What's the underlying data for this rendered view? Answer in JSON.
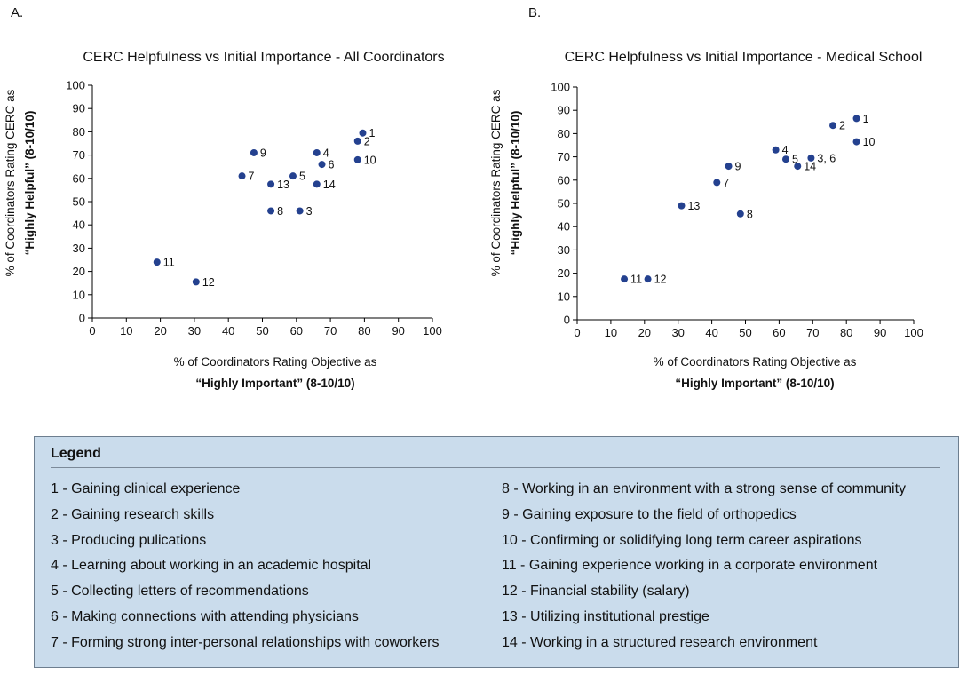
{
  "panels": {
    "a": {
      "letter": "A.",
      "title": "CERC Helpfulness vs Initial Importance - All Coordinators"
    },
    "b": {
      "letter": "B.",
      "title": "CERC Helpfulness vs Initial Importance - Medical School"
    }
  },
  "axes": {
    "xlabel_line1": "% of Coordinators Rating Objective as",
    "xlabel_line2": "“Highly Important” (8-10/10)",
    "ylabel_line1": "% of Coordinators Rating CERC as",
    "ylabel_line2": "“Highly Helpful” (8-10/10)"
  },
  "colors": {
    "marker": "#24418f",
    "legend_bg": "#cadcec"
  },
  "chart_data": [
    {
      "type": "scatter",
      "title": "CERC Helpfulness vs Initial Importance - All Coordinators",
      "xlabel": "% of Coordinators Rating Objective as “Highly Important” (8-10/10)",
      "ylabel": "% of Coordinators Rating CERC as “Highly Helpful” (8-10/10)",
      "xlim": [
        0,
        100
      ],
      "ylim": [
        0,
        100
      ],
      "xticks": [
        0,
        10,
        20,
        30,
        40,
        50,
        60,
        70,
        80,
        90,
        100
      ],
      "yticks": [
        0,
        10,
        20,
        30,
        40,
        50,
        60,
        70,
        80,
        90,
        100
      ],
      "points": [
        {
          "label": "1",
          "x": 79.5,
          "y": 79.5
        },
        {
          "label": "2",
          "x": 78,
          "y": 76
        },
        {
          "label": "3",
          "x": 61,
          "y": 46
        },
        {
          "label": "4",
          "x": 66,
          "y": 71
        },
        {
          "label": "5",
          "x": 59,
          "y": 61
        },
        {
          "label": "6",
          "x": 67.5,
          "y": 66
        },
        {
          "label": "7",
          "x": 44,
          "y": 61
        },
        {
          "label": "8",
          "x": 52.5,
          "y": 46
        },
        {
          "label": "9",
          "x": 47.5,
          "y": 71
        },
        {
          "label": "10",
          "x": 78,
          "y": 68
        },
        {
          "label": "11",
          "x": 19,
          "y": 24
        },
        {
          "label": "12",
          "x": 30.5,
          "y": 15.5
        },
        {
          "label": "13",
          "x": 52.5,
          "y": 57.5
        },
        {
          "label": "14",
          "x": 66,
          "y": 57.5
        }
      ]
    },
    {
      "type": "scatter",
      "title": "CERC Helpfulness vs Initial Importance - Medical School",
      "xlabel": "% of Coordinators Rating Objective as “Highly Important” (8-10/10)",
      "ylabel": "% of Coordinators Rating CERC as “Highly Helpful” (8-10/10)",
      "xlim": [
        0,
        100
      ],
      "ylim": [
        0,
        100
      ],
      "xticks": [
        0,
        10,
        20,
        30,
        40,
        50,
        60,
        70,
        80,
        90,
        100
      ],
      "yticks": [
        0,
        10,
        20,
        30,
        40,
        50,
        60,
        70,
        80,
        90,
        100
      ],
      "points": [
        {
          "label": "1",
          "x": 83,
          "y": 86.5
        },
        {
          "label": "2",
          "x": 76,
          "y": 83.5
        },
        {
          "label": "3, 6",
          "x": 69.5,
          "y": 69.5
        },
        {
          "label": "4",
          "x": 59,
          "y": 73
        },
        {
          "label": "5",
          "x": 62,
          "y": 69
        },
        {
          "label": "7",
          "x": 41.5,
          "y": 59
        },
        {
          "label": "8",
          "x": 48.5,
          "y": 45.5
        },
        {
          "label": "9",
          "x": 45,
          "y": 66
        },
        {
          "label": "10",
          "x": 83,
          "y": 76.5
        },
        {
          "label": "11",
          "x": 14,
          "y": 17.5
        },
        {
          "label": "12",
          "x": 21,
          "y": 17.5
        },
        {
          "label": "13",
          "x": 31,
          "y": 49
        },
        {
          "label": "14",
          "x": 65.5,
          "y": 66
        }
      ]
    }
  ],
  "legend": {
    "title": "Legend",
    "col1": [
      "1 - Gaining clinical experience",
      "2 - Gaining research skills",
      "3 - Producing pulications",
      "4 - Learning about working in an academic hospital",
      "5 - Collecting letters of recommendations",
      "6 - Making connections with attending physicians",
      "7 - Forming strong inter-personal relationships with coworkers"
    ],
    "col2": [
      "8 - Working in an environment with a strong sense of community",
      "9 - Gaining exposure to the field of orthopedics",
      "10 - Confirming or solidifying long term career aspirations",
      "11 - Gaining experience working in a corporate environment",
      "12 - Financial stability (salary)",
      "13 - Utilizing institutional prestige",
      "14 - Working in a structured research environment"
    ]
  }
}
